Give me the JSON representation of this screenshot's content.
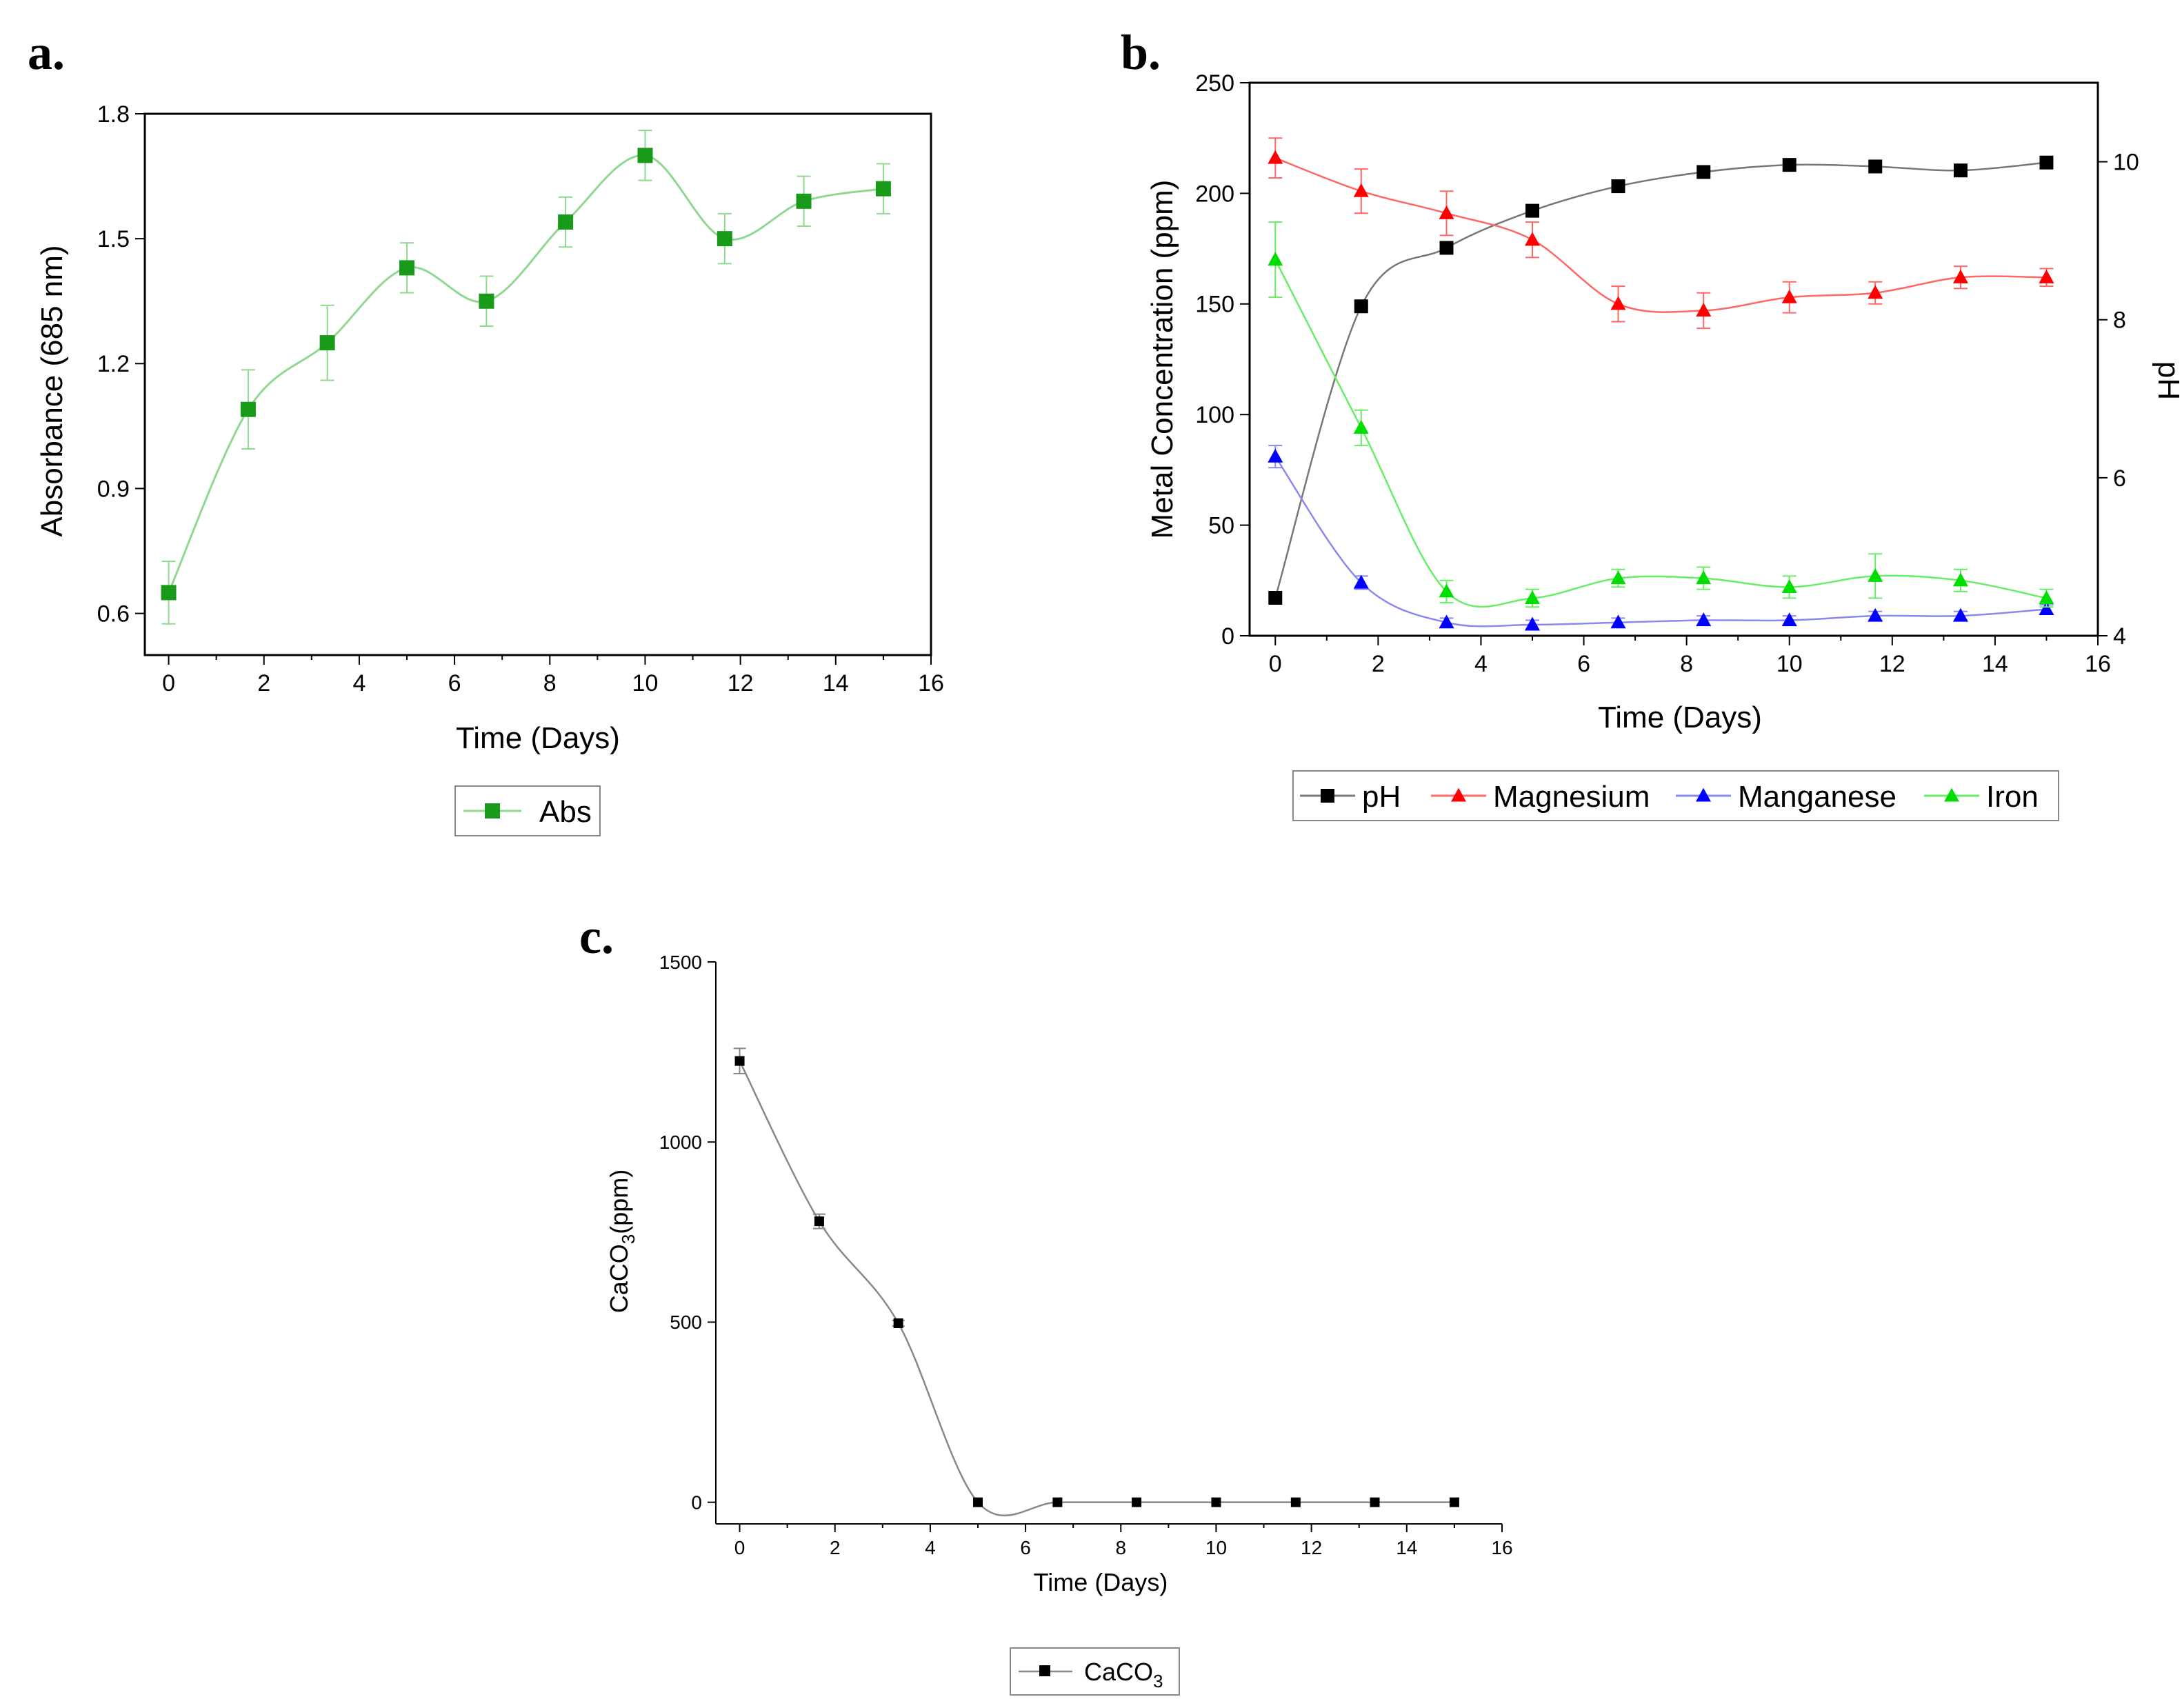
{
  "chart_data": [
    {
      "panel_label": "a.",
      "type": "line",
      "xlabel": "Time (Days)",
      "ylabel": "Absorbance (685 nm)",
      "xlim": [
        -0.5,
        16
      ],
      "ylim": [
        0.5,
        1.8
      ],
      "xticks": [
        0,
        2,
        4,
        6,
        8,
        10,
        12,
        14,
        16
      ],
      "yticks": [
        0.6,
        0.9,
        1.2,
        1.5,
        1.8
      ],
      "ytick_labels": [
        "0.6",
        "0.9",
        "1.2",
        "1.5",
        "1.8"
      ],
      "series": [
        {
          "name": "Abs",
          "color": "#1a9a1a",
          "line_color": "#8fd88f",
          "marker": "square",
          "x": [
            0,
            1.67,
            3.33,
            5,
            6.67,
            8.33,
            10,
            11.67,
            13.33,
            15
          ],
          "y": [
            0.65,
            1.09,
            1.25,
            1.43,
            1.35,
            1.54,
            1.7,
            1.5,
            1.59,
            1.62
          ],
          "err": [
            0.075,
            0.095,
            0.09,
            0.06,
            0.06,
            0.06,
            0.06,
            0.06,
            0.06,
            0.06
          ]
        }
      ],
      "legend": "below"
    },
    {
      "panel_label": "b.",
      "type": "line",
      "xlabel": "Time (Days)",
      "ylabel": "Metal Concentration (ppm)",
      "y2label": "pH",
      "xlim": [
        -0.5,
        16
      ],
      "ylim": [
        0,
        250
      ],
      "y2lim": [
        4,
        11
      ],
      "xticks": [
        0,
        2,
        4,
        6,
        8,
        10,
        12,
        14,
        16
      ],
      "yticks": [
        0,
        50,
        100,
        150,
        200,
        250
      ],
      "y2ticks": [
        4,
        6,
        8,
        10
      ],
      "series": [
        {
          "name": "pH",
          "axis": "right",
          "color": "#000000",
          "line_color": "#777777",
          "marker": "square",
          "x": [
            0,
            1.67,
            3.33,
            5,
            6.67,
            8.33,
            10,
            11.67,
            13.33,
            15
          ],
          "y": [
            4.48,
            8.17,
            8.91,
            9.38,
            9.69,
            9.87,
            9.96,
            9.94,
            9.89,
            9.99
          ],
          "err": [
            0,
            0,
            0,
            0,
            0,
            0,
            0,
            0,
            0,
            0
          ]
        },
        {
          "name": "Magnesium",
          "axis": "left",
          "color": "#ff0000",
          "line_color": "#ff6666",
          "marker": "triangle",
          "x": [
            0,
            1.67,
            3.33,
            5,
            6.67,
            8.33,
            10,
            11.67,
            13.33,
            15
          ],
          "y": [
            216,
            201,
            191,
            179,
            150,
            147,
            153,
            155,
            162,
            162
          ],
          "err": [
            9,
            10,
            10,
            8,
            8,
            8,
            7,
            5,
            5,
            4
          ]
        },
        {
          "name": "Manganese",
          "axis": "left",
          "color": "#0000ff",
          "line_color": "#8888ee",
          "marker": "triangle",
          "x": [
            0,
            1.67,
            3.33,
            5,
            6.67,
            8.33,
            10,
            11.67,
            13.33,
            15
          ],
          "y": [
            81,
            24,
            6,
            5,
            6,
            7,
            7,
            9,
            9,
            12
          ],
          "err": [
            5,
            3,
            2,
            2,
            2,
            2,
            2,
            2,
            2,
            2
          ]
        },
        {
          "name": "Iron",
          "axis": "left",
          "color": "#00dd00",
          "line_color": "#66ee66",
          "marker": "triangle",
          "x": [
            0,
            1.67,
            3.33,
            5,
            6.67,
            8.33,
            10,
            11.67,
            13.33,
            15
          ],
          "y": [
            170,
            94,
            20,
            17,
            26,
            26,
            22,
            27,
            25,
            17
          ],
          "err": [
            17,
            8,
            5,
            4,
            4,
            5,
            5,
            10,
            5,
            4
          ]
        }
      ],
      "legend": "below"
    },
    {
      "panel_label": "c.",
      "type": "line",
      "xlabel": "Time (Days)",
      "ylabel_main": "CaCO",
      "ylabel_sub": "3",
      "ylabel_tail": "(ppm)",
      "xlim": [
        -0.5,
        16
      ],
      "ylim": [
        -60,
        1500
      ],
      "xticks": [
        0,
        2,
        4,
        6,
        8,
        10,
        12,
        14,
        16
      ],
      "yticks": [
        0,
        500,
        1000,
        1500
      ],
      "series": [
        {
          "name_main": "CaCO",
          "name_sub": "3",
          "color": "#000000",
          "line_color": "#888888",
          "marker": "square",
          "x": [
            0,
            1.67,
            3.33,
            5,
            6.67,
            8.33,
            10,
            11.67,
            13.33,
            15
          ],
          "y": [
            1225,
            780,
            497,
            0,
            0,
            0,
            0,
            0,
            0,
            0
          ],
          "err": [
            35,
            20,
            8,
            0,
            0,
            0,
            0,
            0,
            0,
            0
          ]
        }
      ],
      "legend": "below"
    }
  ]
}
